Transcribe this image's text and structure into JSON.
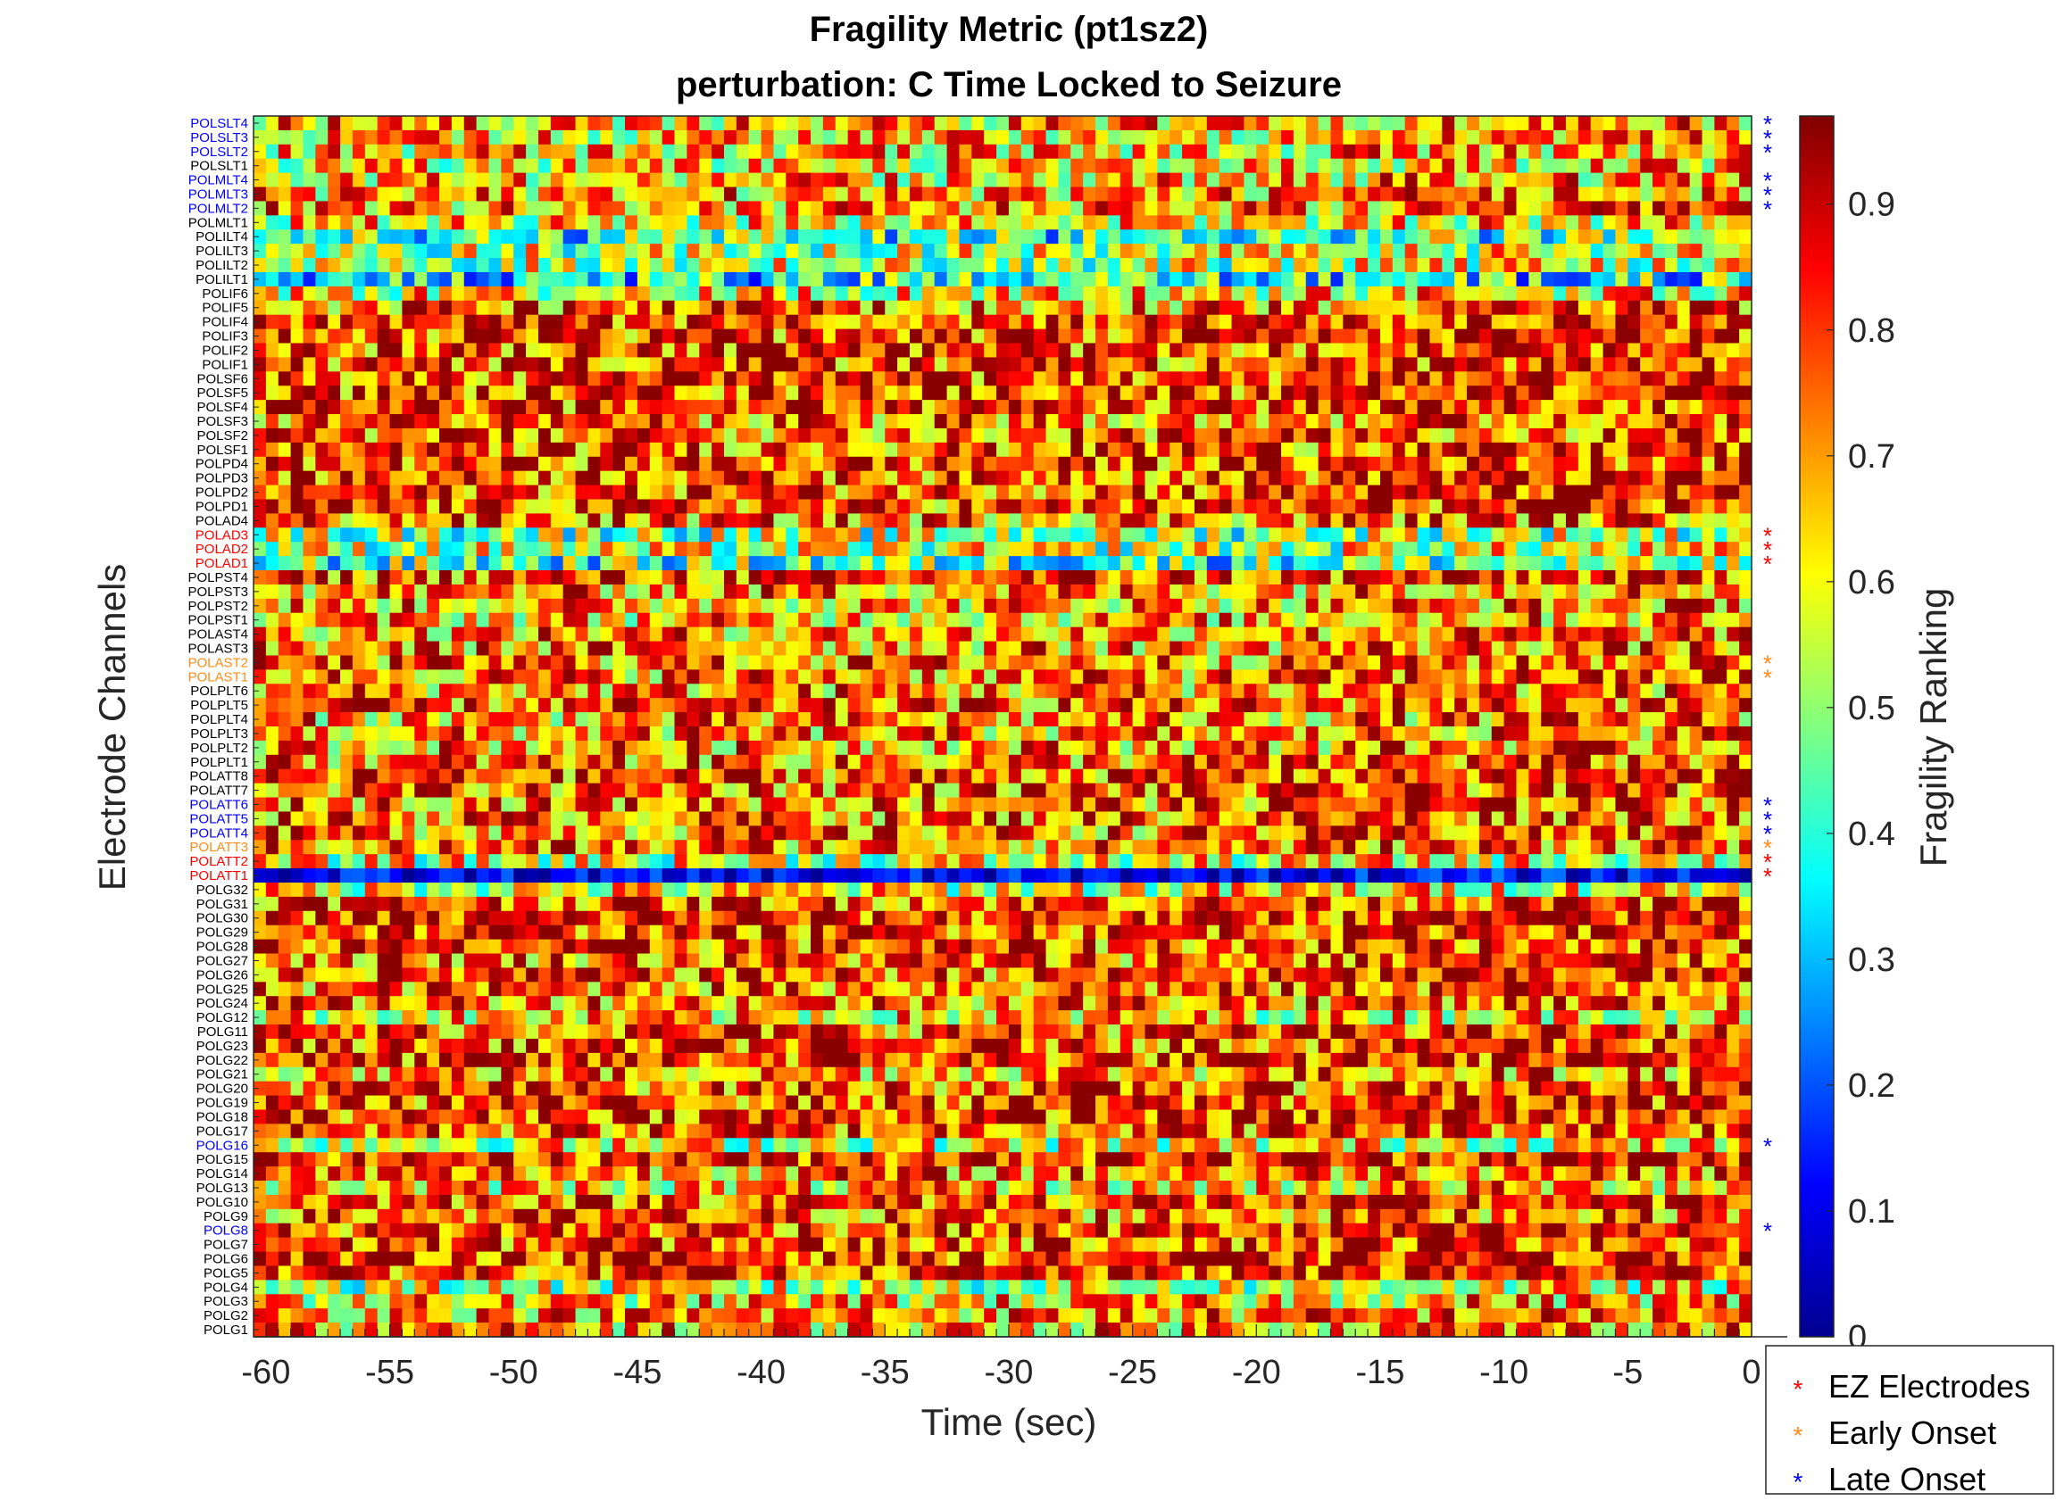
{
  "chart_data": {
    "type": "heatmap",
    "title_line1": "Fragility Metric (pt1sz2)",
    "title_line2": "perturbation: C Time Locked to Seizure",
    "xlabel": "Time (sec)",
    "ylabel": "Electrode Channels",
    "colorbar_label": "Fragility Ranking",
    "colormap": "jet",
    "clim": [
      0,
      0.97
    ],
    "colorbar_ticks": [
      "0",
      "0.1",
      "0.2",
      "0.3",
      "0.4",
      "0.5",
      "0.6",
      "0.7",
      "0.8",
      "0.9"
    ],
    "colorbar_tick_values": [
      0,
      0.1,
      0.2,
      0.3,
      0.4,
      0.5,
      0.6,
      0.7,
      0.8,
      0.9
    ],
    "xlim": [
      -60.5,
      0
    ],
    "x_ticks": [
      "-60",
      "-55",
      "-50",
      "-45",
      "-40",
      "-35",
      "-30",
      "-25",
      "-20",
      "-15",
      "-10",
      "-5",
      "0"
    ],
    "x_tick_values": [
      -60,
      -55,
      -50,
      -45,
      -40,
      -35,
      -30,
      -25,
      -20,
      -15,
      -10,
      -5,
      0
    ],
    "time_step": 0.5,
    "channels": [
      {
        "name": "POLSLT4",
        "group": "late",
        "mean": 0.68
      },
      {
        "name": "POLSLT3",
        "group": "late",
        "mean": 0.66
      },
      {
        "name": "POLSLT2",
        "group": "late",
        "mean": 0.66
      },
      {
        "name": "POLSLT1",
        "group": "none",
        "mean": 0.64
      },
      {
        "name": "POLMLT4",
        "group": "late",
        "mean": 0.66
      },
      {
        "name": "POLMLT3",
        "group": "late",
        "mean": 0.7
      },
      {
        "name": "POLMLT2",
        "group": "late",
        "mean": 0.7
      },
      {
        "name": "POLMLT1",
        "group": "none",
        "mean": 0.62
      },
      {
        "name": "POLILT4",
        "group": "none",
        "mean": 0.42
      },
      {
        "name": "POLILT3",
        "group": "none",
        "mean": 0.55
      },
      {
        "name": "POLILT2",
        "group": "none",
        "mean": 0.55
      },
      {
        "name": "POLILT1",
        "group": "none",
        "mean": 0.36
      },
      {
        "name": "POLIF6",
        "group": "none",
        "mean": 0.62
      },
      {
        "name": "POLIF5",
        "group": "none",
        "mean": 0.74
      },
      {
        "name": "POLIF4",
        "group": "none",
        "mean": 0.82
      },
      {
        "name": "POLIF3",
        "group": "none",
        "mean": 0.8
      },
      {
        "name": "POLIF2",
        "group": "none",
        "mean": 0.8
      },
      {
        "name": "POLIF1",
        "group": "none",
        "mean": 0.78
      },
      {
        "name": "POLSF6",
        "group": "none",
        "mean": 0.8
      },
      {
        "name": "POLSF5",
        "group": "none",
        "mean": 0.8
      },
      {
        "name": "POLSF4",
        "group": "none",
        "mean": 0.8
      },
      {
        "name": "POLSF3",
        "group": "none",
        "mean": 0.76
      },
      {
        "name": "POLSF2",
        "group": "none",
        "mean": 0.76
      },
      {
        "name": "POLSF1",
        "group": "none",
        "mean": 0.78
      },
      {
        "name": "POLPD4",
        "group": "none",
        "mean": 0.8
      },
      {
        "name": "POLPD3",
        "group": "none",
        "mean": 0.8
      },
      {
        "name": "POLPD2",
        "group": "none",
        "mean": 0.8
      },
      {
        "name": "POLPD1",
        "group": "none",
        "mean": 0.78
      },
      {
        "name": "POLAD4",
        "group": "none",
        "mean": 0.74
      },
      {
        "name": "POLAD3",
        "group": "ez",
        "mean": 0.52
      },
      {
        "name": "POLAD2",
        "group": "ez",
        "mean": 0.55
      },
      {
        "name": "POLAD1",
        "group": "ez",
        "mean": 0.44
      },
      {
        "name": "POLPST4",
        "group": "none",
        "mean": 0.78
      },
      {
        "name": "POLPST3",
        "group": "none",
        "mean": 0.72
      },
      {
        "name": "POLPST2",
        "group": "none",
        "mean": 0.7
      },
      {
        "name": "POLPST1",
        "group": "none",
        "mean": 0.68
      },
      {
        "name": "POLAST4",
        "group": "none",
        "mean": 0.72
      },
      {
        "name": "POLAST3",
        "group": "none",
        "mean": 0.72
      },
      {
        "name": "POLAST2",
        "group": "early",
        "mean": 0.74
      },
      {
        "name": "POLAST1",
        "group": "early",
        "mean": 0.74
      },
      {
        "name": "POLPLT6",
        "group": "none",
        "mean": 0.72
      },
      {
        "name": "POLPLT5",
        "group": "none",
        "mean": 0.76
      },
      {
        "name": "POLPLT4",
        "group": "none",
        "mean": 0.7
      },
      {
        "name": "POLPLT3",
        "group": "none",
        "mean": 0.7
      },
      {
        "name": "POLPLT2",
        "group": "none",
        "mean": 0.72
      },
      {
        "name": "POLPLT1",
        "group": "none",
        "mean": 0.74
      },
      {
        "name": "POLATT8",
        "group": "none",
        "mean": 0.78
      },
      {
        "name": "POLATT7",
        "group": "none",
        "mean": 0.76
      },
      {
        "name": "POLATT6",
        "group": "late",
        "mean": 0.76
      },
      {
        "name": "POLATT5",
        "group": "late",
        "mean": 0.76
      },
      {
        "name": "POLATT4",
        "group": "late",
        "mean": 0.74
      },
      {
        "name": "POLATT3",
        "group": "early",
        "mean": 0.74
      },
      {
        "name": "POLATT2",
        "group": "ez",
        "mean": 0.58
      },
      {
        "name": "POLATT1",
        "group": "ez",
        "mean": 0.1
      },
      {
        "name": "POLG32",
        "group": "none",
        "mean": 0.6
      },
      {
        "name": "POLG31",
        "group": "none",
        "mean": 0.8
      },
      {
        "name": "POLG30",
        "group": "none",
        "mean": 0.82
      },
      {
        "name": "POLG29",
        "group": "none",
        "mean": 0.82
      },
      {
        "name": "POLG28",
        "group": "none",
        "mean": 0.78
      },
      {
        "name": "POLG27",
        "group": "none",
        "mean": 0.76
      },
      {
        "name": "POLG26",
        "group": "none",
        "mean": 0.78
      },
      {
        "name": "POLG25",
        "group": "none",
        "mean": 0.76
      },
      {
        "name": "POLG24",
        "group": "none",
        "mean": 0.76
      },
      {
        "name": "POLG12",
        "group": "none",
        "mean": 0.64
      },
      {
        "name": "POLG11",
        "group": "none",
        "mean": 0.78
      },
      {
        "name": "POLG23",
        "group": "none",
        "mean": 0.8
      },
      {
        "name": "POLG22",
        "group": "none",
        "mean": 0.8
      },
      {
        "name": "POLG21",
        "group": "none",
        "mean": 0.72
      },
      {
        "name": "POLG20",
        "group": "none",
        "mean": 0.78
      },
      {
        "name": "POLG19",
        "group": "none",
        "mean": 0.8
      },
      {
        "name": "POLG18",
        "group": "none",
        "mean": 0.82
      },
      {
        "name": "POLG17",
        "group": "none",
        "mean": 0.78
      },
      {
        "name": "POLG16",
        "group": "late",
        "mean": 0.6
      },
      {
        "name": "POLG15",
        "group": "none",
        "mean": 0.86
      },
      {
        "name": "POLG14",
        "group": "none",
        "mean": 0.74
      },
      {
        "name": "POLG13",
        "group": "none",
        "mean": 0.66
      },
      {
        "name": "POLG10",
        "group": "none",
        "mean": 0.8
      },
      {
        "name": "POLG9",
        "group": "none",
        "mean": 0.74
      },
      {
        "name": "POLG8",
        "group": "late",
        "mean": 0.8
      },
      {
        "name": "POLG7",
        "group": "none",
        "mean": 0.8
      },
      {
        "name": "POLG6",
        "group": "none",
        "mean": 0.84
      },
      {
        "name": "POLG5",
        "group": "none",
        "mean": 0.82
      },
      {
        "name": "POLG4",
        "group": "none",
        "mean": 0.56
      },
      {
        "name": "POLG3",
        "group": "none",
        "mean": 0.66
      },
      {
        "name": "POLG2",
        "group": "none",
        "mean": 0.72
      },
      {
        "name": "POLG1",
        "group": "none",
        "mean": 0.7
      }
    ],
    "group_colors": {
      "ez": "#ff0000",
      "early": "#ff8c1a",
      "late": "#0000ff",
      "none": "#000000"
    },
    "legend": {
      "position": "bottom-right",
      "entries": [
        {
          "key": "ez",
          "marker": "*",
          "label": "EZ Electrodes"
        },
        {
          "key": "early",
          "marker": "*",
          "label": "Early Onset"
        },
        {
          "key": "late",
          "marker": "*",
          "label": "Late Onset"
        }
      ]
    }
  }
}
